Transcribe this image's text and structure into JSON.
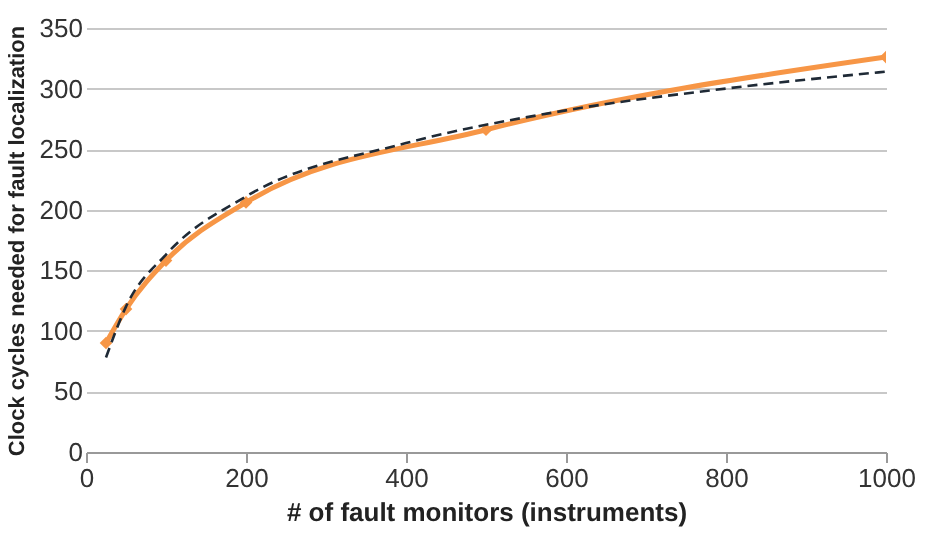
{
  "chart_data": {
    "type": "line",
    "xlabel": "# of fault monitors (instruments)",
    "ylabel": "Clock cycles needed for fault localization",
    "xlim": [
      0,
      1000
    ],
    "xticks": [
      0,
      200,
      400,
      600,
      800,
      1000
    ],
    "ylim": [
      0,
      350
    ],
    "yticks": [
      0,
      50,
      100,
      150,
      200,
      250,
      300,
      350
    ],
    "grid": "y",
    "series": [
      {
        "color": "#f79646",
        "marker": "diamond",
        "line_style": "solid",
        "x": [
          25,
          50,
          100,
          200,
          500,
          1000
        ],
        "values": [
          90,
          118,
          158,
          206,
          266,
          326
        ]
      },
      {
        "color": "#1f2a36",
        "marker": "none",
        "line_style": "dashed",
        "x": [
          25,
          50,
          100,
          200,
          400,
          600,
          800,
          1000
        ],
        "values": [
          78,
          120,
          163,
          211,
          255,
          282,
          300,
          314
        ]
      }
    ]
  }
}
